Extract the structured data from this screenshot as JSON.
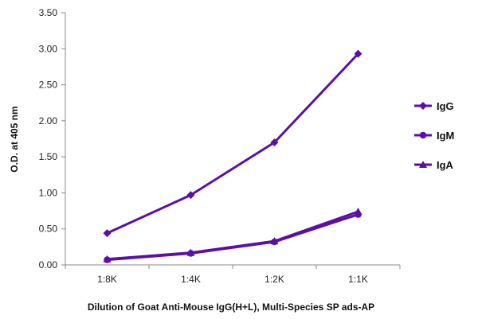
{
  "chart_data": {
    "type": "line",
    "categories": [
      "1:8K",
      "1:4K",
      "1:2K",
      "1:1K"
    ],
    "series": [
      {
        "name": "IgG",
        "marker": "diamond",
        "values": [
          0.44,
          0.97,
          1.7,
          2.93
        ]
      },
      {
        "name": "IgM",
        "marker": "circle",
        "values": [
          0.07,
          0.16,
          0.32,
          0.7
        ]
      },
      {
        "name": "IgA",
        "marker": "triangle",
        "values": [
          0.08,
          0.17,
          0.33,
          0.74
        ]
      }
    ],
    "title": "",
    "xlabel": "Dilution of Goat Anti-Mouse IgG(H+L), Multi-Species SP ads-AP",
    "ylabel": "O.D. at 405 nm",
    "ylim": [
      0,
      3.5
    ],
    "yticks": [
      "0.00",
      "0.50",
      "1.00",
      "1.50",
      "2.00",
      "2.50",
      "3.00",
      "3.50"
    ],
    "ytick_values": [
      0,
      0.5,
      1.0,
      1.5,
      2.0,
      2.5,
      3.0,
      3.5
    ],
    "grid": false,
    "legend_position": "right",
    "series_color": "#5b0fa8"
  }
}
